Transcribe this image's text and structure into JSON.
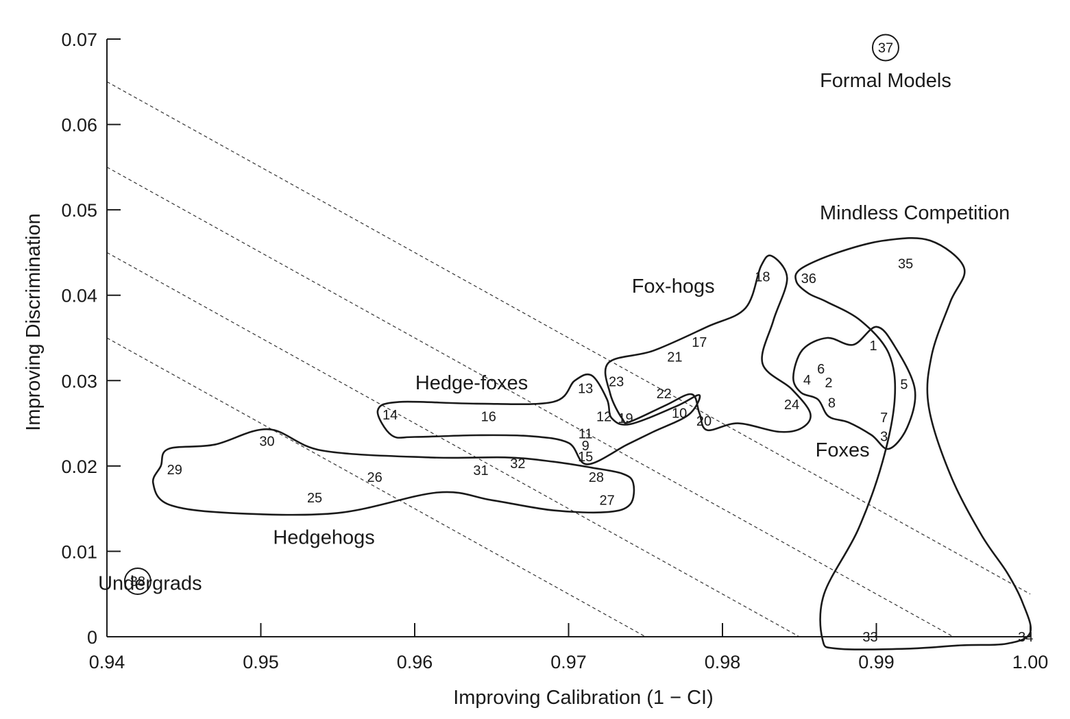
{
  "chart_data": {
    "type": "scatter",
    "xlabel": "Improving Calibration (1 − CI)",
    "ylabel": "Improving Discrimination",
    "xlim": [
      0.94,
      1.0
    ],
    "ylim": [
      0,
      0.07
    ],
    "xticks": [
      "0.94",
      "0.95",
      "0.96",
      "0.97",
      "0.98",
      "0.99",
      "1.00"
    ],
    "yticks": [
      "0",
      "0.01",
      "0.02",
      "0.03",
      "0.04",
      "0.05",
      "0.06",
      "0.07"
    ],
    "grid": false,
    "points": [
      {
        "label": "1",
        "x": 0.9898,
        "y": 0.0341
      },
      {
        "label": "2",
        "x": 0.9869,
        "y": 0.0298
      },
      {
        "label": "3",
        "x": 0.9905,
        "y": 0.0235
      },
      {
        "label": "4",
        "x": 0.9855,
        "y": 0.0301
      },
      {
        "label": "5",
        "x": 0.9918,
        "y": 0.0296
      },
      {
        "label": "6",
        "x": 0.9864,
        "y": 0.0314
      },
      {
        "label": "7",
        "x": 0.9905,
        "y": 0.0257
      },
      {
        "label": "8",
        "x": 0.9871,
        "y": 0.0274
      },
      {
        "label": "9",
        "x": 0.9711,
        "y": 0.0224
      },
      {
        "label": "10",
        "x": 0.9772,
        "y": 0.0262
      },
      {
        "label": "11",
        "x": 0.9711,
        "y": 0.0238
      },
      {
        "label": "12",
        "x": 0.9723,
        "y": 0.0258
      },
      {
        "label": "13",
        "x": 0.9711,
        "y": 0.0291
      },
      {
        "label": "14",
        "x": 0.9584,
        "y": 0.026
      },
      {
        "label": "15",
        "x": 0.9711,
        "y": 0.0211
      },
      {
        "label": "16",
        "x": 0.9648,
        "y": 0.0258
      },
      {
        "label": "17",
        "x": 0.9785,
        "y": 0.0345
      },
      {
        "label": "18",
        "x": 0.9826,
        "y": 0.0422
      },
      {
        "label": "19",
        "x": 0.9737,
        "y": 0.0256
      },
      {
        "label": "20",
        "x": 0.9788,
        "y": 0.0253
      },
      {
        "label": "21",
        "x": 0.9769,
        "y": 0.0328
      },
      {
        "label": "22",
        "x": 0.9762,
        "y": 0.0285
      },
      {
        "label": "23",
        "x": 0.9731,
        "y": 0.0299
      },
      {
        "label": "24",
        "x": 0.9845,
        "y": 0.0272
      },
      {
        "label": "25",
        "x": 0.9535,
        "y": 0.0163
      },
      {
        "label": "26",
        "x": 0.9574,
        "y": 0.0187
      },
      {
        "label": "27",
        "x": 0.9725,
        "y": 0.016
      },
      {
        "label": "28",
        "x": 0.9718,
        "y": 0.0187
      },
      {
        "label": "29",
        "x": 0.9444,
        "y": 0.0196
      },
      {
        "label": "30",
        "x": 0.9504,
        "y": 0.0229
      },
      {
        "label": "31",
        "x": 0.9643,
        "y": 0.0195
      },
      {
        "label": "32",
        "x": 0.9667,
        "y": 0.0203
      },
      {
        "label": "33",
        "x": 0.9896,
        "y": 0.0
      },
      {
        "label": "34",
        "x": 0.9997,
        "y": 0.0
      },
      {
        "label": "35",
        "x": 0.9919,
        "y": 0.0437
      },
      {
        "label": "36",
        "x": 0.9856,
        "y": 0.042
      },
      {
        "label": "37",
        "x": 0.9906,
        "y": 0.069
      },
      {
        "label": "38",
        "x": 0.942,
        "y": 0.0065
      }
    ],
    "circled_points": [
      "37",
      "38"
    ],
    "annotations": [
      {
        "text": "Formal Models",
        "x": 0.9906,
        "y": 0.0652
      },
      {
        "text": "Mindless Competition",
        "x": 0.9925,
        "y": 0.0497
      },
      {
        "text": "Fox-hogs",
        "x": 0.9768,
        "y": 0.0411
      },
      {
        "text": "Hedge-foxes",
        "x": 0.9637,
        "y": 0.0298
      },
      {
        "text": "Foxes",
        "x": 0.9878,
        "y": 0.0219
      },
      {
        "text": "Hedgehogs",
        "x": 0.9541,
        "y": 0.0117
      },
      {
        "text": "Undergrads",
        "x": 0.9428,
        "y": 0.0063
      }
    ],
    "regions": [
      {
        "name": "Mindless Competition",
        "outline": [
          [
            0.9851,
            0.0431
          ],
          [
            0.9875,
            0.045
          ],
          [
            0.9905,
            0.0464
          ],
          [
            0.9935,
            0.0464
          ],
          [
            0.9957,
            0.0432
          ],
          [
            0.9948,
            0.0392
          ],
          [
            0.9936,
            0.033
          ],
          [
            0.9934,
            0.027
          ],
          [
            0.9948,
            0.019
          ],
          [
            0.9968,
            0.012
          ],
          [
            0.9985,
            0.0075
          ],
          [
            0.9995,
            0.004
          ],
          [
            1.0,
            0.0005
          ],
          [
            0.9985,
            -0.0008
          ],
          [
            0.9955,
            -0.001
          ],
          [
            0.992,
            -0.0014
          ],
          [
            0.9875,
            -0.0014
          ],
          [
            0.9865,
            -0.0003
          ],
          [
            0.9866,
            0.005
          ],
          [
            0.9888,
            0.0125
          ],
          [
            0.9904,
            0.0205
          ],
          [
            0.9912,
            0.028
          ],
          [
            0.9908,
            0.0332
          ],
          [
            0.989,
            0.037
          ],
          [
            0.9868,
            0.0392
          ],
          [
            0.9856,
            0.0402
          ],
          [
            0.9848,
            0.0416
          ],
          [
            0.9851,
            0.0431
          ]
        ]
      },
      {
        "name": "Foxes",
        "outline": [
          [
            0.9852,
            0.0336
          ],
          [
            0.9868,
            0.035
          ],
          [
            0.9885,
            0.0342
          ],
          [
            0.99,
            0.0363
          ],
          [
            0.9912,
            0.034
          ],
          [
            0.9925,
            0.029
          ],
          [
            0.992,
            0.0245
          ],
          [
            0.9908,
            0.022
          ],
          [
            0.9897,
            0.0236
          ],
          [
            0.9882,
            0.0251
          ],
          [
            0.9869,
            0.0258
          ],
          [
            0.9862,
            0.0278
          ],
          [
            0.9851,
            0.0286
          ],
          [
            0.9846,
            0.0304
          ],
          [
            0.9852,
            0.0336
          ]
        ]
      },
      {
        "name": "Fox-hogs",
        "outline": [
          [
            0.9726,
            0.0321
          ],
          [
            0.9755,
            0.0335
          ],
          [
            0.979,
            0.0363
          ],
          [
            0.9815,
            0.0385
          ],
          [
            0.9825,
            0.0434
          ],
          [
            0.9832,
            0.0446
          ],
          [
            0.9842,
            0.042
          ],
          [
            0.9833,
            0.037
          ],
          [
            0.9826,
            0.032
          ],
          [
            0.9845,
            0.029
          ],
          [
            0.9857,
            0.0262
          ],
          [
            0.9852,
            0.0245
          ],
          [
            0.9837,
            0.024
          ],
          [
            0.981,
            0.025
          ],
          [
            0.979,
            0.0242
          ],
          [
            0.9785,
            0.0262
          ],
          [
            0.978,
            0.0284
          ],
          [
            0.9763,
            0.0271
          ],
          [
            0.974,
            0.0252
          ],
          [
            0.9735,
            0.0255
          ],
          [
            0.9727,
            0.0285
          ],
          [
            0.9726,
            0.0321
          ]
        ]
      },
      {
        "name": "Hedge-foxes",
        "outline": [
          [
            0.9576,
            0.0265
          ],
          [
            0.959,
            0.0275
          ],
          [
            0.964,
            0.0273
          ],
          [
            0.969,
            0.0275
          ],
          [
            0.9704,
            0.03
          ],
          [
            0.9715,
            0.0306
          ],
          [
            0.9725,
            0.0278
          ],
          [
            0.9728,
            0.0256
          ],
          [
            0.974,
            0.0249
          ],
          [
            0.977,
            0.027
          ],
          [
            0.9785,
            0.0283
          ],
          [
            0.9778,
            0.026
          ],
          [
            0.9755,
            0.024
          ],
          [
            0.9738,
            0.0225
          ],
          [
            0.9712,
            0.0202
          ],
          [
            0.97,
            0.0227
          ],
          [
            0.9675,
            0.0235
          ],
          [
            0.964,
            0.0236
          ],
          [
            0.96,
            0.0234
          ],
          [
            0.9585,
            0.0236
          ],
          [
            0.9576,
            0.0265
          ]
        ]
      },
      {
        "name": "Hedgehogs",
        "outline": [
          [
            0.9435,
            0.02
          ],
          [
            0.944,
            0.022
          ],
          [
            0.947,
            0.0225
          ],
          [
            0.9505,
            0.0243
          ],
          [
            0.954,
            0.0218
          ],
          [
            0.961,
            0.021
          ],
          [
            0.966,
            0.021
          ],
          [
            0.969,
            0.0205
          ],
          [
            0.9715,
            0.0198
          ],
          [
            0.9735,
            0.0191
          ],
          [
            0.9742,
            0.018
          ],
          [
            0.974,
            0.0155
          ],
          [
            0.9725,
            0.0146
          ],
          [
            0.969,
            0.0148
          ],
          [
            0.965,
            0.016
          ],
          [
            0.9615,
            0.0169
          ],
          [
            0.955,
            0.0145
          ],
          [
            0.948,
            0.0145
          ],
          [
            0.944,
            0.0155
          ],
          [
            0.943,
            0.018
          ],
          [
            0.9435,
            0.02
          ]
        ]
      }
    ],
    "iso_lines": [
      [
        [
          0.94,
          0.065
        ],
        [
          1.0,
          0.005
        ]
      ],
      [
        [
          0.94,
          0.055
        ],
        [
          0.995,
          0.0
        ]
      ],
      [
        [
          0.94,
          0.045
        ],
        [
          0.985,
          0.0
        ]
      ],
      [
        [
          0.94,
          0.035
        ],
        [
          0.975,
          0.0
        ]
      ]
    ]
  }
}
